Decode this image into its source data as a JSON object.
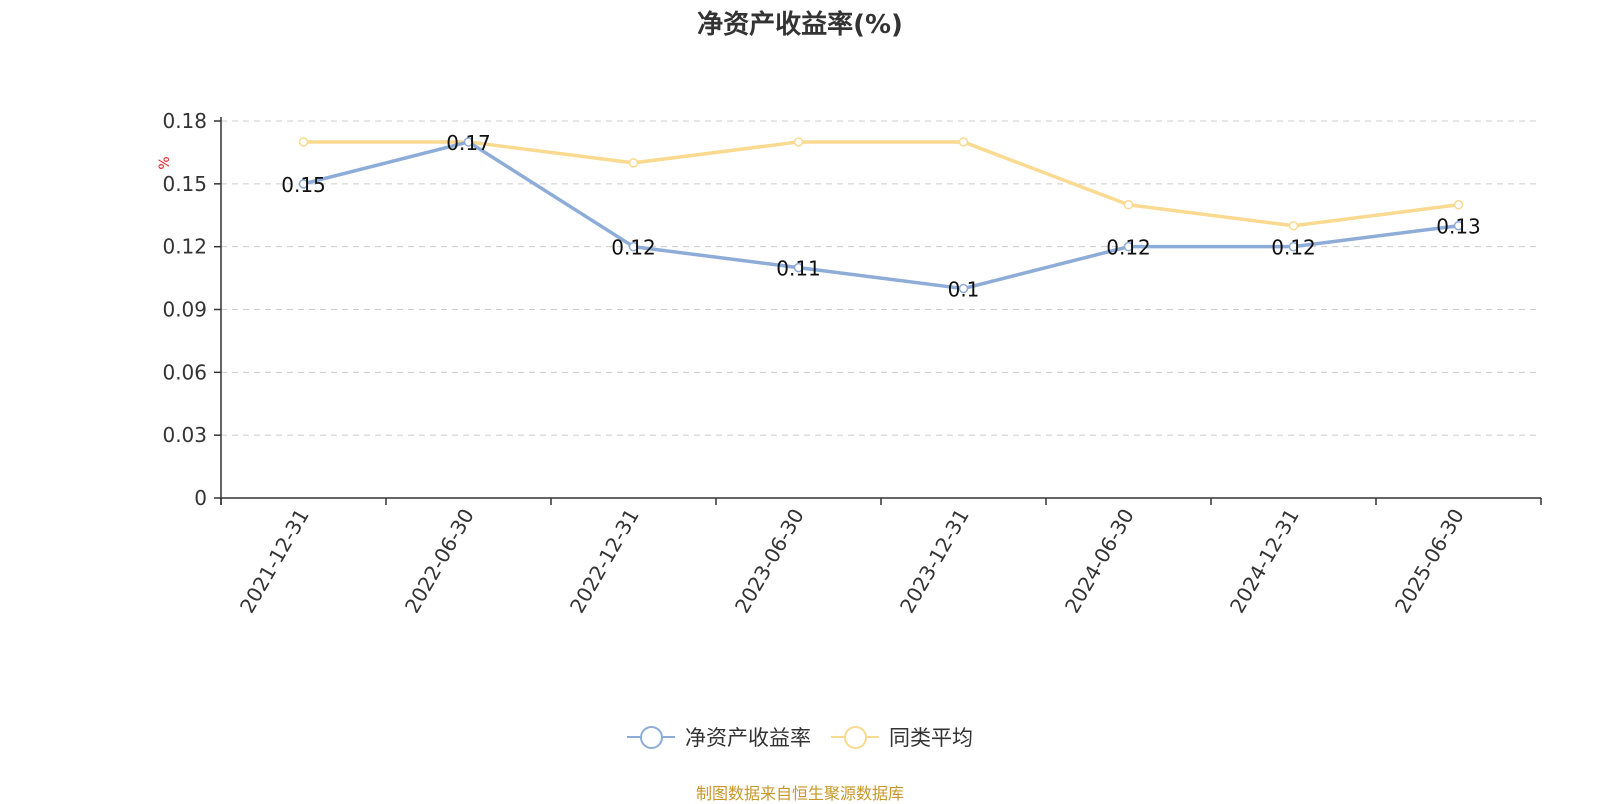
{
  "chart_data": {
    "type": "line",
    "title": "净资产收益率(%)",
    "ylabel": "%",
    "categories": [
      "2021-12-31",
      "2022-06-30",
      "2022-12-31",
      "2023-06-30",
      "2023-12-31",
      "2024-06-30",
      "2024-12-31",
      "2025-06-30"
    ],
    "ylim": [
      0,
      0.18
    ],
    "yticks": [
      "0",
      "0.03",
      "0.06",
      "0.09",
      "0.12",
      "0.15",
      "0.18"
    ],
    "grid": "horizontal-dashed",
    "legend_position": "bottom-center",
    "series": [
      {
        "name": "净资产收益率",
        "color": "#8eacd8",
        "values": [
          0.15,
          0.17,
          0.12,
          0.11,
          0.1,
          0.12,
          0.12,
          0.13
        ],
        "labels": [
          "0.15",
          "0.17",
          "0.12",
          "0.11",
          "0.1",
          "0.12",
          "0.12",
          "0.13"
        ]
      },
      {
        "name": "同类平均",
        "color": "#fad990",
        "values": [
          0.17,
          0.17,
          0.16,
          0.17,
          0.17,
          0.14,
          0.13,
          0.14
        ]
      }
    ]
  },
  "source": {
    "text": "制图数据来自恒生聚源数据库",
    "color": "#c8962a"
  }
}
